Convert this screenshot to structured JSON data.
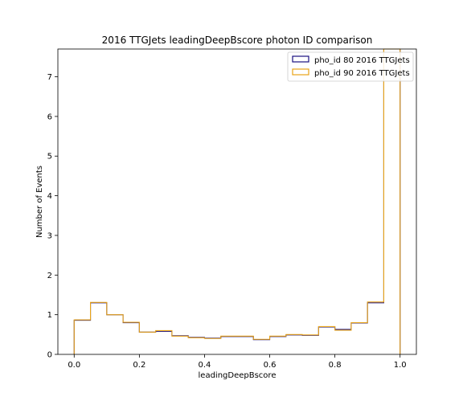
{
  "chart_data": {
    "type": "histogram",
    "title": "2016 TTGJets leadingDeepBscore photon ID comparison",
    "xlabel": "leadingDeepBscore",
    "ylabel": "Number of Events",
    "xlim": [
      -0.05,
      1.05
    ],
    "ylim": [
      0,
      7.7
    ],
    "xticks": [
      "0.0",
      "0.2",
      "0.4",
      "0.6",
      "0.8",
      "1.0"
    ],
    "yticks": [
      "0",
      "1",
      "2",
      "3",
      "4",
      "5",
      "6",
      "7"
    ],
    "grid": false,
    "legend_position": "top-right",
    "bin_edges": [
      0.0,
      0.05,
      0.1,
      0.15,
      0.2,
      0.25,
      0.3,
      0.35,
      0.4,
      0.45,
      0.5,
      0.55,
      0.6,
      0.65,
      0.7,
      0.75,
      0.8,
      0.85,
      0.9,
      0.95,
      1.0
    ],
    "series": [
      {
        "name": "pho_id 80 2016 TTGJets",
        "color": "#1a1080",
        "values": [
          0.86,
          1.3,
          1.0,
          0.8,
          0.56,
          0.58,
          0.47,
          0.43,
          0.41,
          0.45,
          0.45,
          0.37,
          0.45,
          0.49,
          0.48,
          0.69,
          0.63,
          0.79,
          1.3,
          7.7
        ]
      },
      {
        "name": "pho_id 90 2016 TTGJets",
        "color": "#e8a317",
        "values": [
          0.87,
          1.31,
          1.0,
          0.81,
          0.56,
          0.6,
          0.46,
          0.42,
          0.4,
          0.46,
          0.46,
          0.38,
          0.46,
          0.5,
          0.49,
          0.7,
          0.61,
          0.8,
          1.32,
          7.7
        ]
      }
    ]
  }
}
